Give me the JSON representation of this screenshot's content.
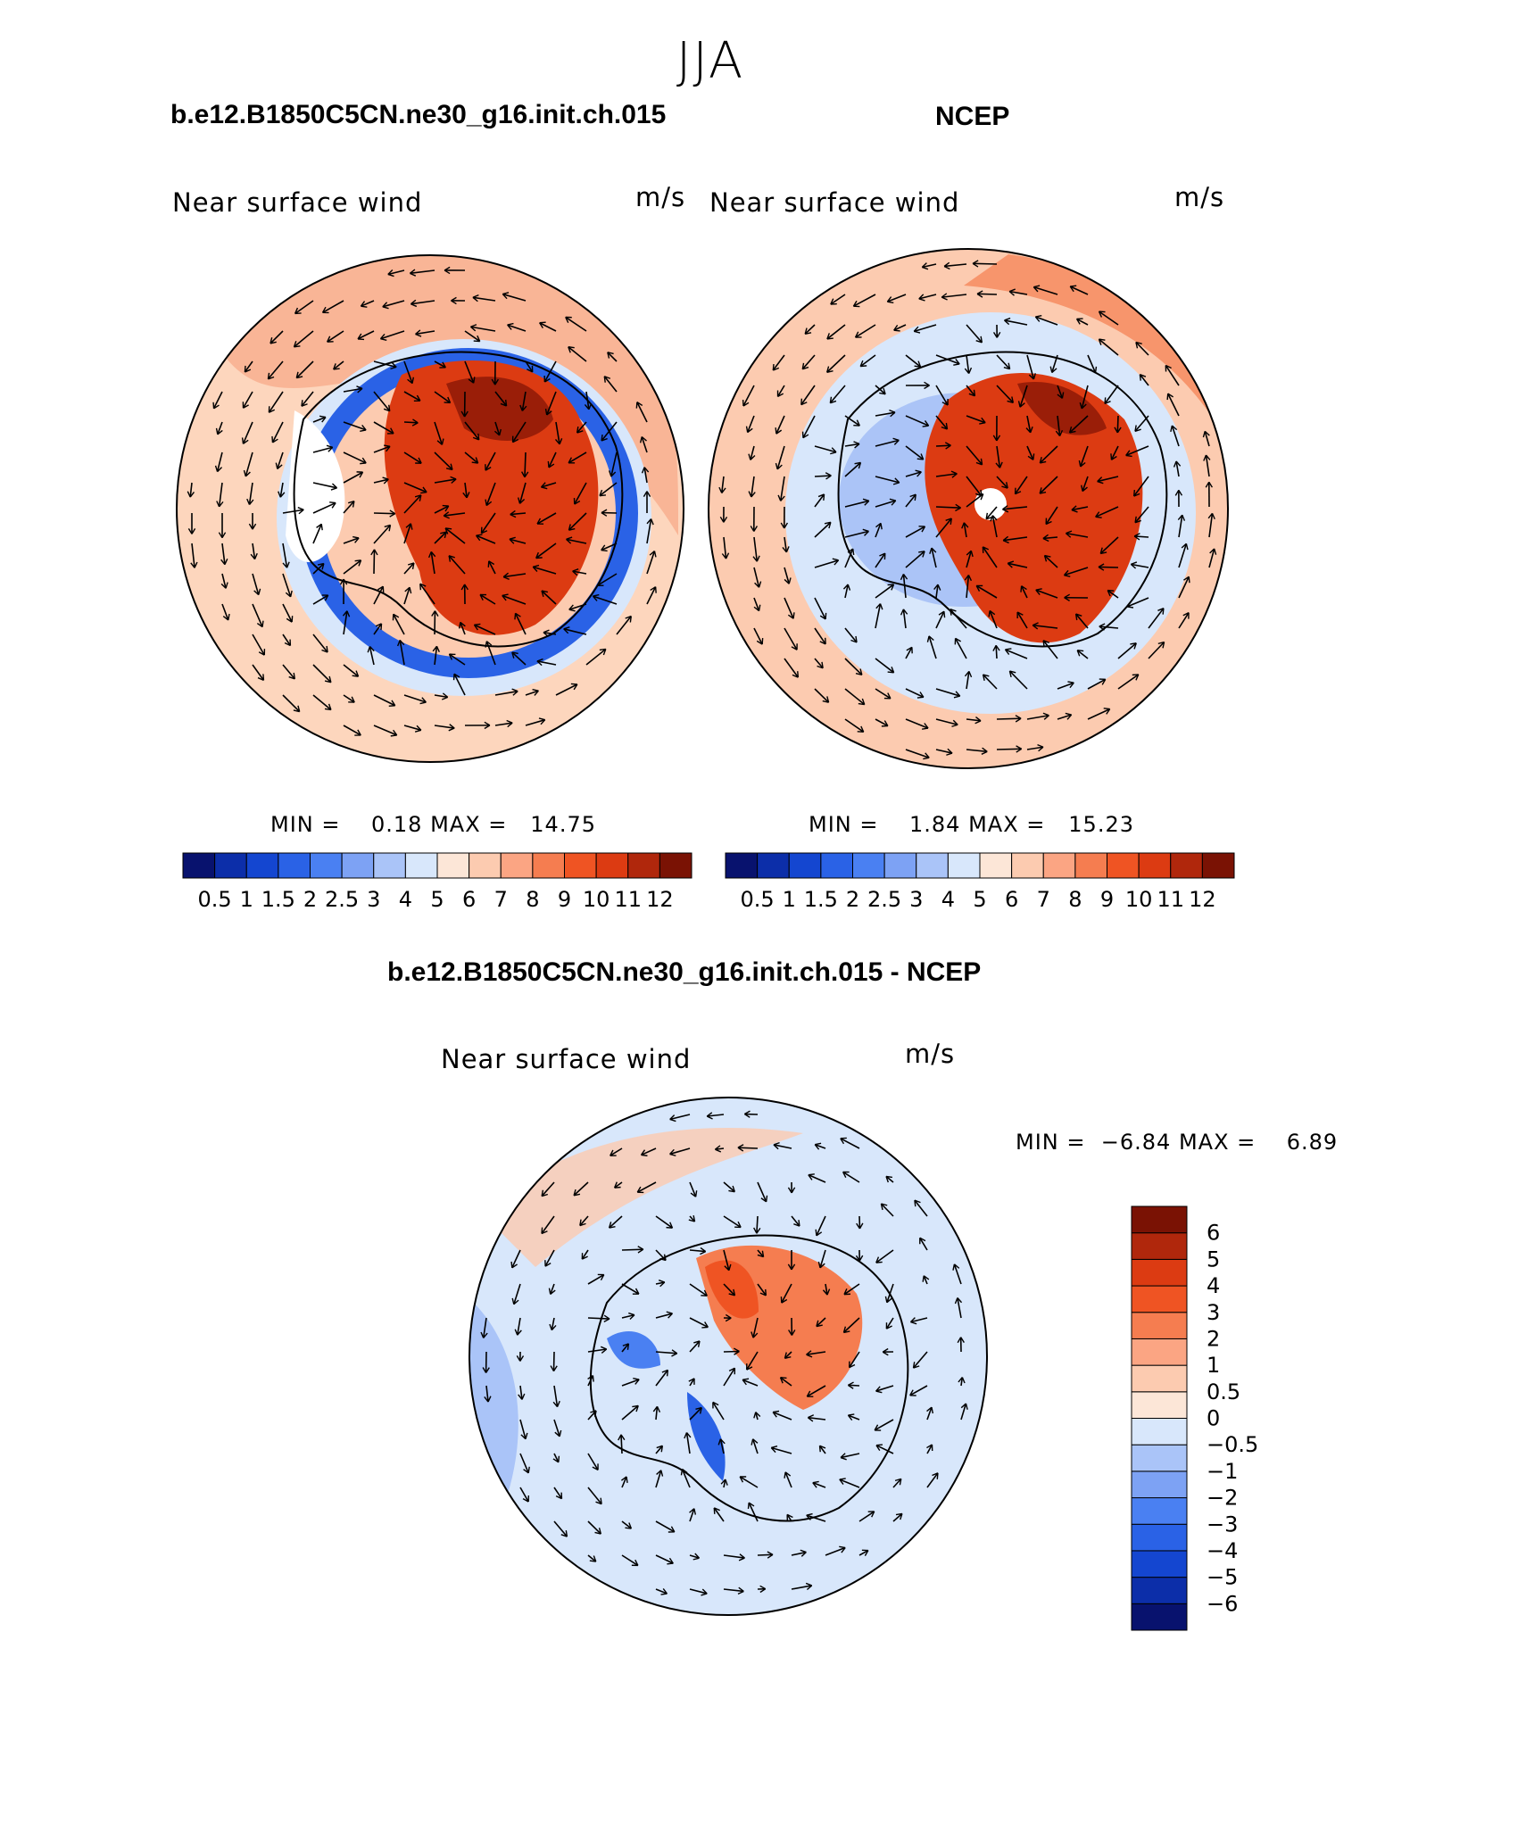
{
  "figure": {
    "title": "JJA",
    "diff_title": "b.e12.B1850C5CN.ne30_g16.init.ch.015 - NCEP"
  },
  "panels": [
    {
      "id": "model",
      "header": "b.e12.B1850C5CN.ne30_g16.init.ch.015",
      "left_label": "Near surface wind",
      "right_label": "m/s",
      "min_label": "MIN =",
      "min": "0.18",
      "max_label": "MAX =",
      "max": "14.75"
    },
    {
      "id": "obs",
      "header": "NCEP",
      "left_label": "Near surface wind",
      "right_label": "m/s",
      "min_label": "MIN =",
      "min": "1.84",
      "max_label": "MAX =",
      "max": "15.23"
    },
    {
      "id": "diff",
      "left_label": "Near surface wind",
      "right_label": "m/s",
      "min_label": "MIN =",
      "min": "−6.84",
      "max_label": "MAX =",
      "max": "6.89"
    }
  ],
  "chart_data": [
    {
      "type": "heatmap",
      "projection": "south-polar-stereographic",
      "variable": "Near surface wind",
      "units": "m/s",
      "title": "b.e12.B1850C5CN.ne30_g16.init.ch.015",
      "min": 0.18,
      "max": 14.75,
      "colorbar": {
        "orientation": "horizontal",
        "levels": [
          0.5,
          1,
          1.5,
          2,
          2.5,
          3,
          4,
          5,
          6,
          7,
          8,
          9,
          10,
          11,
          12
        ],
        "tick_labels": [
          "0.5",
          "1",
          "1.5",
          "2",
          "2.5",
          "3",
          "4",
          "5",
          "6",
          "7",
          "8",
          "9",
          "10",
          "11",
          "12"
        ],
        "colors": [
          "#08126e",
          "#0c2ea9",
          "#1446d0",
          "#2a62e6",
          "#4a80f2",
          "#7da2f4",
          "#aac4f8",
          "#d8e7fb",
          "#fce6d7",
          "#fccbb0",
          "#fba583",
          "#f57d50",
          "#ef5423",
          "#dc3b12",
          "#b0270c",
          "#7a1204"
        ]
      }
    },
    {
      "type": "heatmap",
      "projection": "south-polar-stereographic",
      "variable": "Near surface wind",
      "units": "m/s",
      "title": "NCEP",
      "min": 1.84,
      "max": 15.23,
      "colorbar": {
        "orientation": "horizontal",
        "levels": [
          0.5,
          1,
          1.5,
          2,
          2.5,
          3,
          4,
          5,
          6,
          7,
          8,
          9,
          10,
          11,
          12
        ],
        "tick_labels": [
          "0.5",
          "1",
          "1.5",
          "2",
          "2.5",
          "3",
          "4",
          "5",
          "6",
          "7",
          "8",
          "9",
          "10",
          "11",
          "12"
        ],
        "colors": [
          "#08126e",
          "#0c2ea9",
          "#1446d0",
          "#2a62e6",
          "#4a80f2",
          "#7da2f4",
          "#aac4f8",
          "#d8e7fb",
          "#fce6d7",
          "#fccbb0",
          "#fba583",
          "#f57d50",
          "#ef5423",
          "#dc3b12",
          "#b0270c",
          "#7a1204"
        ]
      }
    },
    {
      "type": "heatmap",
      "projection": "south-polar-stereographic",
      "variable": "Near surface wind",
      "units": "m/s",
      "title": "b.e12.B1850C5CN.ne30_g16.init.ch.015 - NCEP",
      "min": -6.84,
      "max": 6.89,
      "colorbar": {
        "orientation": "vertical",
        "levels": [
          -6,
          -5,
          -4,
          -3,
          -2,
          -1,
          -0.5,
          0,
          0.5,
          1,
          2,
          3,
          4,
          5,
          6
        ],
        "tick_labels": [
          "−6",
          "−5",
          "−4",
          "−3",
          "−2",
          "−1",
          "−0.5",
          "0",
          "0.5",
          "1",
          "2",
          "3",
          "4",
          "5",
          "6"
        ],
        "colors": [
          "#08126e",
          "#0c2ea9",
          "#1446d0",
          "#2a62e6",
          "#4a80f2",
          "#7da2f4",
          "#aac4f8",
          "#d8e7fb",
          "#fce6d7",
          "#fccbb0",
          "#fba583",
          "#f57d50",
          "#ef5423",
          "#dc3b12",
          "#b0270c",
          "#7a1204"
        ]
      }
    }
  ]
}
